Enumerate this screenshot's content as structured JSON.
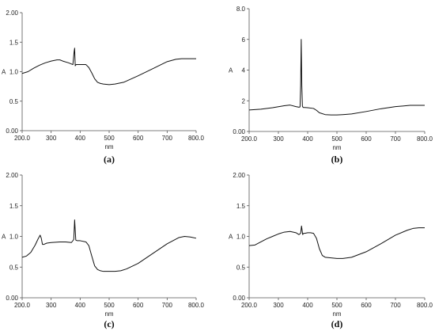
{
  "chart_data": [
    {
      "type": "line",
      "caption": "(a)",
      "xlabel": "nm",
      "ylabel": "A",
      "xlim": [
        200,
        800
      ],
      "ylim": [
        0,
        2
      ],
      "x_ticks": [
        "200.0",
        "300",
        "400",
        "500",
        "600",
        "700",
        "800.0"
      ],
      "y_ticks": [
        "0.00",
        "0.5",
        "1.0",
        "1.5",
        "2.00"
      ],
      "series": [
        {
          "x": [
            200,
            220,
            240,
            260,
            280,
            300,
            320,
            330,
            340,
            360,
            375,
            379,
            381,
            383,
            386,
            390,
            400,
            420,
            430,
            440,
            450,
            460,
            470,
            480,
            500,
            520,
            550,
            600,
            650,
            700,
            730,
            750,
            770,
            800
          ],
          "y": [
            0.97,
            1.0,
            1.06,
            1.11,
            1.15,
            1.18,
            1.2,
            1.2,
            1.18,
            1.15,
            1.12,
            1.33,
            1.4,
            1.1,
            1.12,
            1.12,
            1.12,
            1.12,
            1.07,
            0.98,
            0.88,
            0.82,
            0.8,
            0.79,
            0.78,
            0.79,
            0.82,
            0.93,
            1.05,
            1.17,
            1.21,
            1.22,
            1.22,
            1.22
          ]
        }
      ]
    },
    {
      "type": "line",
      "caption": "(b)",
      "xlabel": "nm",
      "ylabel": "A",
      "xlim": [
        200,
        800
      ],
      "ylim": [
        0,
        8
      ],
      "x_ticks": [
        "200.0",
        "300",
        "400",
        "500",
        "600",
        "700",
        "800.0"
      ],
      "y_ticks": [
        "0.00",
        "2",
        "4",
        "6",
        "8.0"
      ],
      "series": [
        {
          "x": [
            200,
            240,
            280,
            320,
            340,
            360,
            370,
            374,
            376,
            378,
            380,
            382,
            384,
            386,
            390,
            400,
            420,
            430,
            440,
            460,
            480,
            500,
            520,
            550,
            600,
            650,
            700,
            750,
            800
          ],
          "y": [
            1.4,
            1.45,
            1.55,
            1.68,
            1.72,
            1.62,
            1.58,
            1.6,
            3.0,
            6.0,
            3.0,
            1.65,
            1.58,
            1.56,
            1.56,
            1.55,
            1.5,
            1.38,
            1.22,
            1.1,
            1.08,
            1.08,
            1.1,
            1.14,
            1.3,
            1.48,
            1.62,
            1.7,
            1.7
          ]
        }
      ]
    },
    {
      "type": "line",
      "caption": "(c)",
      "xlabel": "nm",
      "ylabel": "A",
      "xlim": [
        200,
        800
      ],
      "ylim": [
        0,
        2
      ],
      "x_ticks": [
        "200.0",
        "300",
        "400",
        "500",
        "600",
        "700",
        "800.0"
      ],
      "y_ticks": [
        "0.00",
        "0.5",
        "1.0",
        "1.5",
        "2.00"
      ],
      "series": [
        {
          "x": [
            200,
            215,
            230,
            245,
            255,
            262,
            266,
            270,
            275,
            285,
            300,
            330,
            350,
            370,
            378,
            381,
            383,
            385,
            390,
            400,
            420,
            430,
            440,
            450,
            460,
            470,
            480,
            500,
            520,
            540,
            560,
            600,
            650,
            700,
            740,
            760,
            780,
            800
          ],
          "y": [
            0.66,
            0.68,
            0.74,
            0.86,
            0.96,
            1.02,
            0.97,
            0.87,
            0.87,
            0.89,
            0.9,
            0.91,
            0.91,
            0.9,
            0.95,
            1.27,
            1.1,
            0.94,
            0.93,
            0.93,
            0.91,
            0.85,
            0.68,
            0.52,
            0.46,
            0.44,
            0.43,
            0.43,
            0.43,
            0.44,
            0.47,
            0.56,
            0.72,
            0.88,
            0.98,
            1.0,
            0.99,
            0.97
          ]
        }
      ]
    },
    {
      "type": "line",
      "caption": "(d)",
      "xlabel": "nm",
      "ylabel": "A",
      "xlim": [
        200,
        800
      ],
      "ylim": [
        0,
        2
      ],
      "x_ticks": [
        "200.0",
        "300",
        "400",
        "500",
        "600",
        "700",
        "800.0"
      ],
      "y_ticks": [
        "0.00",
        "0.5",
        "1.0",
        "1.5",
        "2.00"
      ],
      "series": [
        {
          "x": [
            200,
            220,
            240,
            260,
            280,
            300,
            320,
            340,
            360,
            370,
            376,
            379,
            381,
            383,
            386,
            390,
            400,
            410,
            420,
            430,
            440,
            450,
            460,
            480,
            500,
            520,
            550,
            600,
            650,
            700,
            740,
            760,
            780,
            800
          ],
          "y": [
            0.85,
            0.86,
            0.91,
            0.96,
            1.0,
            1.04,
            1.07,
            1.08,
            1.06,
            1.03,
            1.05,
            1.17,
            1.1,
            1.03,
            1.05,
            1.05,
            1.06,
            1.06,
            1.05,
            0.97,
            0.8,
            0.69,
            0.66,
            0.65,
            0.64,
            0.64,
            0.66,
            0.75,
            0.88,
            1.02,
            1.1,
            1.13,
            1.14,
            1.14
          ]
        }
      ]
    }
  ]
}
